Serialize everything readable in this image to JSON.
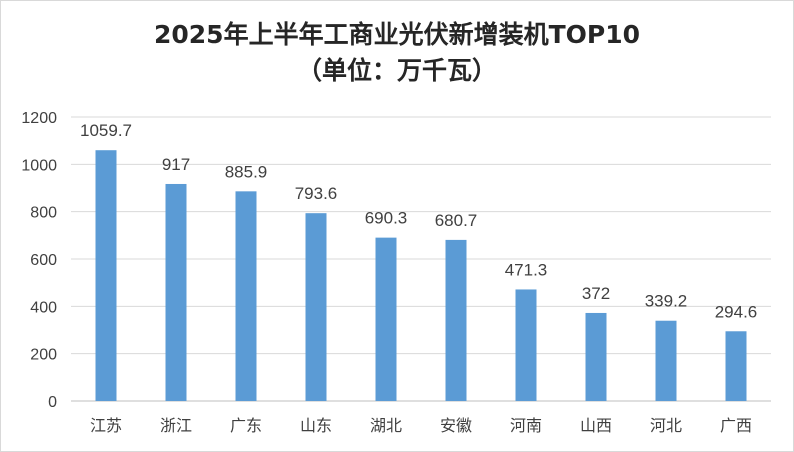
{
  "chart_data": {
    "type": "bar",
    "title": "2025年上半年工商业光伏新增装机TOP10",
    "subtitle": "（单位：万千瓦）",
    "categories": [
      "江苏",
      "浙江",
      "广东",
      "山东",
      "湖北",
      "安徽",
      "河南",
      "山西",
      "河北",
      "广西"
    ],
    "values": [
      1059.7,
      917,
      885.9,
      793.6,
      690.3,
      680.7,
      471.3,
      372,
      339.2,
      294.6
    ],
    "value_labels": [
      "1059.7",
      "917",
      "885.9",
      "793.6",
      "690.3",
      "680.7",
      "471.3",
      "372",
      "339.2",
      "294.6"
    ],
    "yticks": [
      "0",
      "200",
      "400",
      "600",
      "800",
      "1000",
      "1200"
    ],
    "ylim": [
      0,
      1200
    ],
    "grid": true,
    "legend": "none",
    "bar_color": "#5b9bd5"
  }
}
